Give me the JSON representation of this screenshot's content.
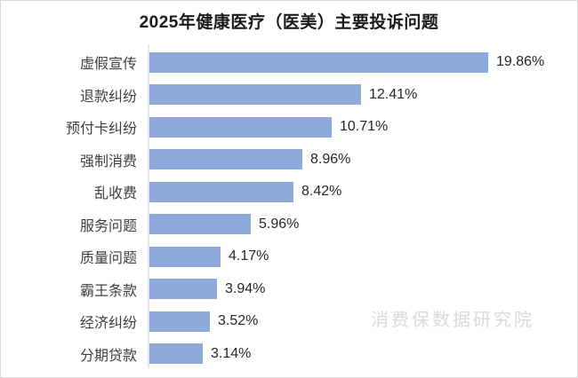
{
  "title": "2025年健康医疗（医美）主要投诉问题",
  "watermark": "消费保数据研究院",
  "colors": {
    "bar": "#8EAADB",
    "axis": "#E8E8E8",
    "frame": "#D9D9D9",
    "watermark": "#DADADA",
    "title_text": "#1A1A1A",
    "label_text": "#3F3F3F",
    "value_text": "#262626"
  },
  "chart_data": {
    "type": "bar",
    "orientation": "horizontal",
    "title": "2025年健康医疗（医美）主要投诉问题",
    "categories": [
      "虚假宣传",
      "退款纠纷",
      "预付卡纠纷",
      "强制消费",
      "乱收费",
      "服务问题",
      "质量问题",
      "霸王条款",
      "经济纠纷",
      "分期贷款"
    ],
    "values": [
      19.86,
      12.41,
      10.71,
      8.96,
      8.42,
      5.96,
      4.17,
      3.94,
      3.52,
      3.14
    ],
    "value_labels": [
      "19.86%",
      "12.41%",
      "10.71%",
      "8.96%",
      "8.42%",
      "5.96%",
      "4.17%",
      "3.94%",
      "3.52%",
      "3.14%"
    ],
    "unit": "%",
    "xlim": [
      0,
      21
    ],
    "grid": false,
    "legend": false,
    "value_label_position": "outside-end",
    "annotations": [
      "消费保数据研究院"
    ]
  }
}
